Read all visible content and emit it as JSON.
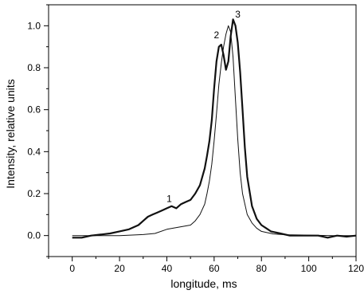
{
  "chart_data": {
    "type": "line",
    "title": "",
    "xlabel": "longitude, ms",
    "ylabel": "Intensity, relative units",
    "xlim": [
      -10,
      120
    ],
    "ylim": [
      -0.1,
      1.1
    ],
    "x_ticks": [
      0,
      20,
      40,
      60,
      80,
      100,
      120
    ],
    "x_tick_labels": [
      "0",
      "20",
      "40",
      "60",
      "80",
      "100",
      "120"
    ],
    "y_ticks": [
      0.0,
      0.2,
      0.4,
      0.6,
      0.8,
      1.0
    ],
    "y_tick_labels": [
      "0.0",
      "0.2",
      "0.4",
      "0.6",
      "0.8",
      "1.0"
    ],
    "grid": false,
    "legend": "none",
    "series": [
      {
        "style": "thick",
        "color": "#111111",
        "x": [
          0,
          4,
          8,
          12,
          16,
          20,
          24,
          28,
          30,
          32,
          34,
          36,
          38,
          40,
          42,
          44,
          46,
          48,
          50,
          52,
          54,
          56,
          57,
          58,
          59,
          60,
          61,
          62,
          63,
          64,
          65,
          66,
          67,
          68,
          69,
          70,
          71,
          72,
          73,
          74,
          76,
          78,
          80,
          82,
          84,
          88,
          92,
          96,
          100,
          104,
          108,
          112,
          116,
          120
        ],
        "y": [
          -0.01,
          -0.01,
          0.0,
          0.005,
          0.01,
          0.02,
          0.03,
          0.05,
          0.07,
          0.09,
          0.1,
          0.11,
          0.12,
          0.13,
          0.14,
          0.13,
          0.15,
          0.16,
          0.17,
          0.2,
          0.24,
          0.32,
          0.38,
          0.45,
          0.55,
          0.7,
          0.83,
          0.9,
          0.91,
          0.86,
          0.79,
          0.83,
          0.95,
          1.03,
          1.0,
          0.92,
          0.78,
          0.6,
          0.42,
          0.28,
          0.14,
          0.08,
          0.05,
          0.035,
          0.02,
          0.01,
          0.0,
          0.0,
          0.0,
          0.0,
          -0.01,
          0.0,
          -0.005,
          0.0
        ]
      },
      {
        "style": "thin",
        "color": "#111111",
        "x": [
          0,
          10,
          20,
          30,
          35,
          40,
          45,
          50,
          52,
          54,
          56,
          57,
          58,
          59,
          60,
          61,
          62,
          63,
          64,
          65,
          66,
          67,
          68,
          69,
          70,
          71,
          72,
          74,
          76,
          78,
          80,
          85,
          90,
          100,
          110,
          120
        ],
        "y": [
          0.0,
          0.0,
          0.0,
          0.005,
          0.01,
          0.03,
          0.04,
          0.05,
          0.07,
          0.1,
          0.15,
          0.2,
          0.26,
          0.34,
          0.45,
          0.58,
          0.72,
          0.82,
          0.9,
          0.96,
          1.0,
          0.97,
          0.85,
          0.65,
          0.46,
          0.3,
          0.2,
          0.1,
          0.06,
          0.035,
          0.02,
          0.008,
          0.004,
          0.002,
          0.0,
          0.0
        ]
      }
    ],
    "annotations": [
      {
        "text": "1",
        "x": 41,
        "y": 0.16
      },
      {
        "text": "2",
        "x": 61,
        "y": 0.94
      },
      {
        "text": "3",
        "x": 70,
        "y": 1.04
      }
    ]
  }
}
